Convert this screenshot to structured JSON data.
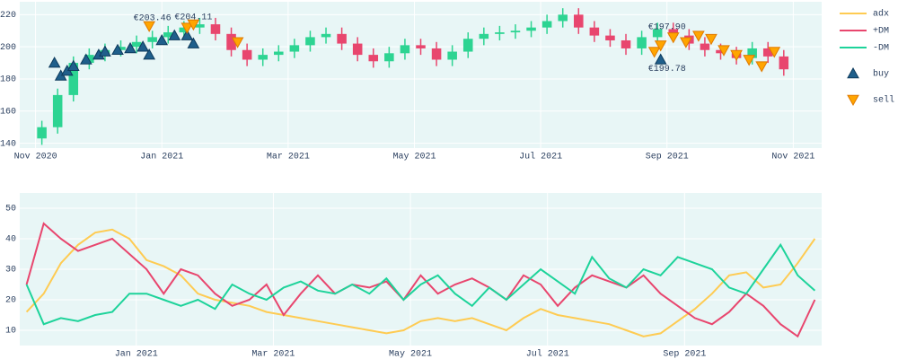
{
  "chart_data": [
    {
      "type": "candlestick",
      "x": [
        0.1,
        0.35,
        0.6,
        0.85,
        1.1,
        1.35,
        1.6,
        1.85,
        2.1,
        2.35,
        2.6,
        2.85,
        3.1,
        3.35,
        3.6,
        3.85,
        4.1,
        4.35,
        4.6,
        4.85,
        5.1,
        5.35,
        5.6,
        5.85,
        6.1,
        6.35,
        6.6,
        6.85,
        7.1,
        7.35,
        7.6,
        7.85,
        8.1,
        8.35,
        8.6,
        8.85,
        9.1,
        9.35,
        9.6,
        9.85,
        10.1,
        10.35,
        10.6,
        10.85,
        11.1,
        11.35,
        11.6,
        11.85
      ],
      "open": [
        143,
        150,
        170,
        190,
        195,
        198,
        200,
        203,
        206,
        209,
        212,
        214,
        208,
        198,
        192,
        195,
        197,
        201,
        206,
        208,
        202,
        195,
        191,
        196,
        201,
        199,
        192,
        197,
        205,
        208,
        209,
        210,
        212,
        216,
        220,
        212,
        207,
        204,
        199,
        206,
        211,
        207,
        202,
        198,
        196,
        193,
        199,
        194
      ],
      "high": [
        154,
        174,
        194,
        199,
        202,
        204,
        207,
        210,
        213,
        216,
        218,
        218,
        212,
        202,
        199,
        201,
        205,
        210,
        212,
        212,
        206,
        199,
        200,
        205,
        205,
        203,
        201,
        209,
        212,
        213,
        214,
        216,
        220,
        224,
        224,
        216,
        211,
        208,
        210,
        215,
        215,
        211,
        206,
        202,
        200,
        203,
        203,
        198
      ],
      "low": [
        139,
        146,
        166,
        186,
        191,
        194,
        196,
        199,
        202,
        205,
        208,
        204,
        194,
        188,
        188,
        191,
        193,
        197,
        202,
        198,
        191,
        187,
        187,
        192,
        195,
        188,
        188,
        193,
        201,
        204,
        205,
        206,
        208,
        212,
        208,
        203,
        200,
        195,
        195,
        202,
        203,
        198,
        194,
        192,
        189,
        189,
        190,
        182
      ],
      "close": [
        150,
        170,
        190,
        195,
        198,
        200,
        203,
        206,
        209,
        212,
        214,
        208,
        198,
        192,
        195,
        197,
        201,
        206,
        208,
        202,
        195,
        191,
        196,
        201,
        199,
        192,
        197,
        205,
        208,
        209,
        210,
        212,
        216,
        220,
        212,
        207,
        204,
        199,
        206,
        211,
        207,
        202,
        198,
        196,
        193,
        199,
        194,
        186
      ],
      "increasing_color": "#2dd492",
      "decreasing_color": "#e8466e",
      "markers": [
        {
          "name": "buy",
          "symbol": "triangle-up",
          "color": "#1f5f8b",
          "x": [
            0.3,
            0.4,
            0.5,
            0.6,
            0.8,
            1.0,
            1.1,
            1.3,
            1.5,
            1.7,
            1.8,
            2.0,
            2.2,
            2.4,
            2.5,
            9.9
          ],
          "y": [
            190,
            182,
            185,
            188,
            192,
            195,
            197,
            198,
            199,
            200,
            195,
            204,
            207,
            207,
            202,
            192
          ]
        },
        {
          "name": "sell",
          "symbol": "triangle-down",
          "color": "#ffa500",
          "x": [
            1.8,
            2.4,
            2.5,
            3.2,
            9.8,
            9.9,
            10.1,
            10.3,
            10.5,
            10.7,
            10.9,
            11.1,
            11.3,
            11.5,
            11.7
          ],
          "y": [
            213,
            212,
            214,
            203,
            197,
            201,
            206,
            203,
            207,
            205,
            198,
            195,
            192,
            188,
            197
          ]
        }
      ],
      "annotations": [
        {
          "x": 1.85,
          "y": 203.46,
          "label": "€203.46",
          "position": "above"
        },
        {
          "x": 2.5,
          "y": 204.11,
          "label": "€204.11",
          "position": "above"
        },
        {
          "x": 10.0,
          "y": 197.9,
          "label": "€197.90",
          "position": "above"
        },
        {
          "x": 10.0,
          "y": 199.78,
          "label": "€199.78",
          "position": "below"
        }
      ],
      "xlim": [
        -0.25,
        12.45
      ],
      "xticks": [
        {
          "value": 0,
          "label": "Nov 2020"
        },
        {
          "value": 2,
          "label": "Jan 2021"
        },
        {
          "value": 4,
          "label": "Mar 2021"
        },
        {
          "value": 6,
          "label": "May 2021"
        },
        {
          "value": 8,
          "label": "Jul 2021"
        },
        {
          "value": 10,
          "label": "Sep 2021"
        },
        {
          "value": 12,
          "label": "Nov 2021"
        }
      ],
      "ylim": [
        137,
        228
      ],
      "yticks": [
        140,
        160,
        180,
        200,
        220
      ],
      "grid": true
    },
    {
      "type": "line",
      "x": [
        0.4,
        0.65,
        0.9,
        1.15,
        1.4,
        1.65,
        1.9,
        2.15,
        2.4,
        2.65,
        2.9,
        3.15,
        3.4,
        3.65,
        3.9,
        4.15,
        4.4,
        4.65,
        4.9,
        5.15,
        5.4,
        5.65,
        5.9,
        6.15,
        6.4,
        6.65,
        6.9,
        7.15,
        7.4,
        7.65,
        7.9,
        8.15,
        8.4,
        8.65,
        8.9,
        9.15,
        9.4,
        9.65,
        9.9,
        10.15,
        10.4,
        10.65,
        10.9,
        11.15,
        11.4,
        11.65,
        11.9
      ],
      "series": [
        {
          "name": "adx",
          "color": "#fecb52",
          "values": [
            16,
            22,
            32,
            38,
            42,
            43,
            40,
            33,
            31,
            28,
            22,
            20,
            19,
            18,
            16,
            15,
            14,
            13,
            12,
            11,
            10,
            9,
            10,
            13,
            14,
            13,
            14,
            12,
            10,
            14,
            17,
            15,
            14,
            13,
            12,
            10,
            8,
            9,
            13,
            17,
            22,
            28,
            29,
            24,
            25,
            32,
            40
          ]
        },
        {
          "name": "+DM",
          "color": "#e8466e",
          "values": [
            25,
            45,
            40,
            36,
            38,
            40,
            35,
            30,
            22,
            30,
            28,
            22,
            18,
            20,
            25,
            15,
            22,
            28,
            22,
            25,
            24,
            26,
            20,
            28,
            22,
            25,
            27,
            24,
            20,
            28,
            25,
            18,
            24,
            28,
            26,
            24,
            28,
            22,
            18,
            14,
            12,
            16,
            22,
            18,
            12,
            8,
            20
          ]
        },
        {
          "name": "-DM",
          "color": "#1dd39a",
          "values": [
            25,
            12,
            14,
            13,
            15,
            16,
            22,
            22,
            20,
            18,
            20,
            17,
            25,
            22,
            20,
            24,
            26,
            23,
            22,
            25,
            22,
            27,
            20,
            25,
            28,
            22,
            18,
            24,
            20,
            25,
            30,
            26,
            22,
            34,
            27,
            24,
            30,
            28,
            34,
            32,
            30,
            24,
            22,
            30,
            38,
            28,
            23
          ]
        }
      ],
      "xlim": [
        0.3,
        12.0
      ],
      "xticks": [
        {
          "value": 2,
          "label": "Jan 2021"
        },
        {
          "value": 4,
          "label": "Mar 2021"
        },
        {
          "value": 6,
          "label": "May 2021"
        },
        {
          "value": 8,
          "label": "Jul 2021"
        },
        {
          "value": 10,
          "label": "Sep 2021"
        }
      ],
      "ylim": [
        5,
        55
      ],
      "yticks": [
        10,
        20,
        30,
        40,
        50
      ],
      "grid": true
    }
  ]
}
